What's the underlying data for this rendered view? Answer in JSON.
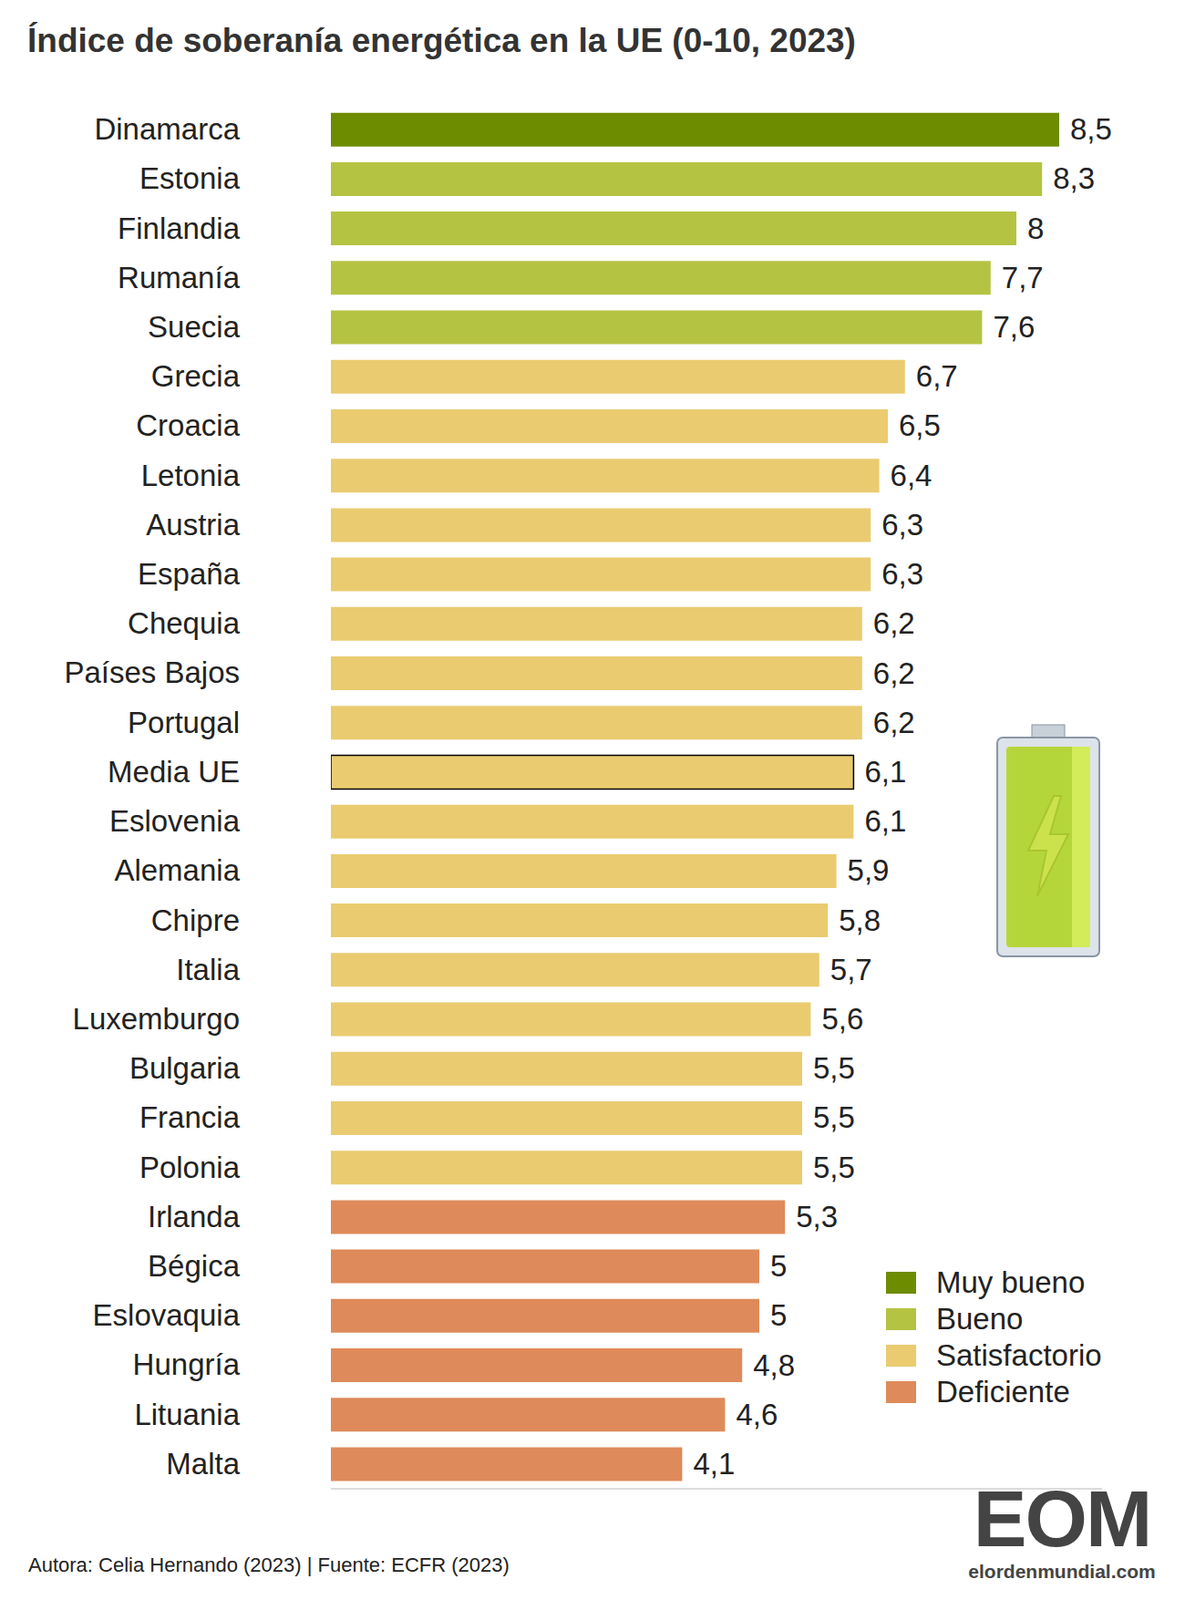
{
  "chart_data": {
    "type": "bar",
    "orientation": "horizontal",
    "title": "Índice de soberanía energética en la UE (0-10, 2023)",
    "categories": [
      "Dinamarca",
      "Estonia",
      "Finlandia",
      "Rumanía",
      "Suecia",
      "Grecia",
      "Croacia",
      "Letonia",
      "Austria",
      "España",
      "Chequia",
      "Países Bajos",
      "Portugal",
      "Media UE",
      "Eslovenia",
      "Alemania",
      "Chipre",
      "Italia",
      "Luxemburgo",
      "Bulgaria",
      "Francia",
      "Polonia",
      "Irlanda",
      "Bégica",
      "Eslovaquia",
      "Hungría",
      "Lituania",
      "Malta"
    ],
    "values": [
      8.5,
      8.3,
      8,
      7.7,
      7.6,
      6.7,
      6.5,
      6.4,
      6.3,
      6.3,
      6.2,
      6.2,
      6.2,
      6.1,
      6.1,
      5.9,
      5.8,
      5.7,
      5.6,
      5.5,
      5.5,
      5.5,
      5.3,
      5,
      5,
      4.8,
      4.6,
      4.1
    ],
    "value_labels": [
      "8,5",
      "8,3",
      "8",
      "7,7",
      "7,6",
      "6,7",
      "6,5",
      "6,4",
      "6,3",
      "6,3",
      "6,2",
      "6,2",
      "6,2",
      "6,1",
      "6,1",
      "5,9",
      "5,8",
      "5,7",
      "5,6",
      "5,5",
      "5,5",
      "5,5",
      "5,3",
      "5",
      "5",
      "4,8",
      "4,6",
      "4,1"
    ],
    "colors": [
      "#6e8c00",
      "#b5c342",
      "#b5c342",
      "#b5c342",
      "#b5c342",
      "#eacb70",
      "#eacb70",
      "#eacb70",
      "#eacb70",
      "#eacb70",
      "#eacb70",
      "#eacb70",
      "#eacb70",
      "#eacb70",
      "#eacb70",
      "#eacb70",
      "#eacb70",
      "#eacb70",
      "#eacb70",
      "#eacb70",
      "#eacb70",
      "#eacb70",
      "#df8a5a",
      "#df8a5a",
      "#df8a5a",
      "#df8a5a",
      "#df8a5a",
      "#df8a5a"
    ],
    "highlight": "Media UE",
    "classes": [
      {
        "name": "Muy bueno",
        "color": "#6e8c00"
      },
      {
        "name": "Bueno",
        "color": "#b5c342"
      },
      {
        "name": "Satisfactorio",
        "color": "#eacb70"
      },
      {
        "name": "Deficiente",
        "color": "#df8a5a"
      }
    ],
    "legend": "lower right",
    "xlim": [
      0,
      9
    ],
    "xticks": [],
    "tick_labels": "y",
    "data_labels": true,
    "grid": false,
    "source": "Autora: Celia Hernando (2023) | Fuente: ECFR (2023)",
    "brand": "EOM",
    "website": "elordenmundial.com"
  }
}
